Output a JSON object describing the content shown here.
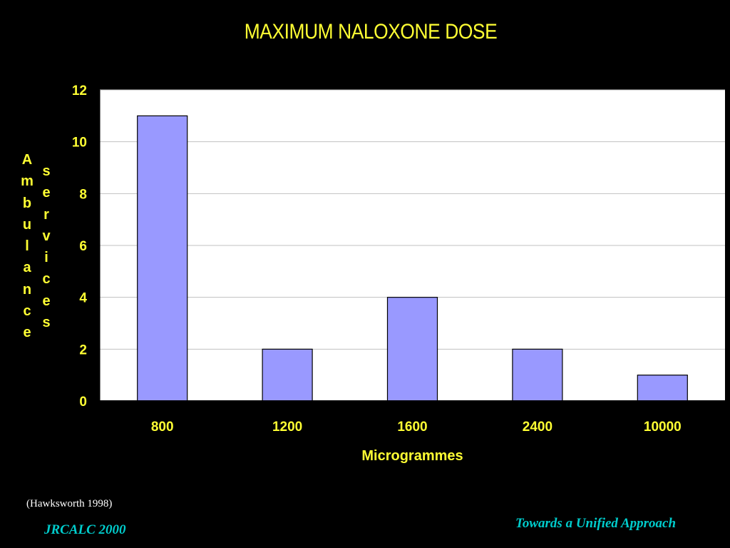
{
  "slide": {
    "citation": "(Hawksworth 1998)",
    "footer_left": "JRCALC 2000",
    "footer_right": "Towards a Unified Approach"
  },
  "colors": {
    "background": "#000000",
    "title_text": "#ffff33",
    "footer_text": "#00cccc",
    "plot_area": "#ffffff",
    "bar_fill": "#9999ff",
    "bar_stroke": "#000000"
  },
  "chart_data": {
    "type": "bar",
    "title": "MAXIMUM NALOXONE DOSE",
    "xlabel": "Microgrammes",
    "ylabel_words": [
      "Ambulance",
      "services"
    ],
    "categories": [
      "800",
      "1200",
      "1600",
      "2400",
      "10000"
    ],
    "values": [
      11,
      2,
      4,
      2,
      1
    ],
    "ylim": [
      0,
      12
    ],
    "yticks": [
      0,
      2,
      4,
      6,
      8,
      10,
      12
    ],
    "grid": true,
    "legend": false
  }
}
